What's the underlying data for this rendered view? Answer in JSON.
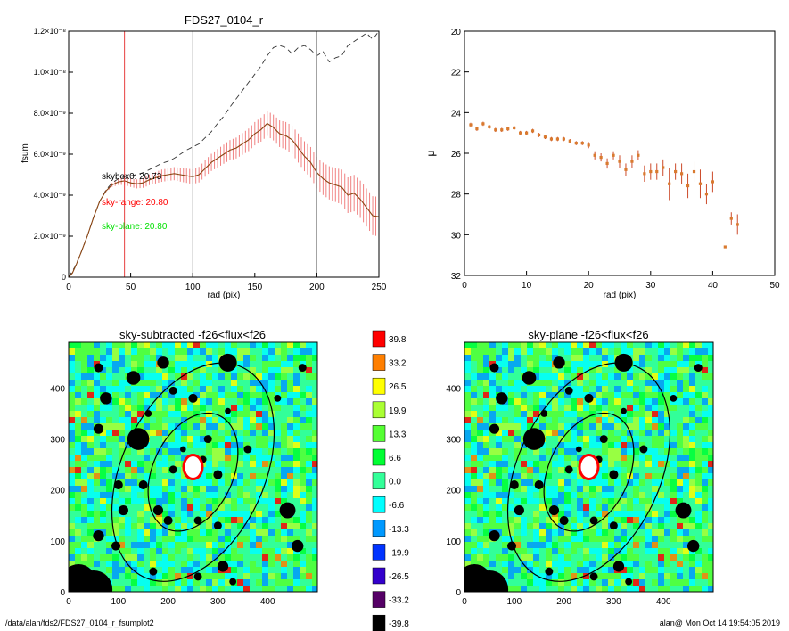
{
  "footer": {
    "path": "/data/alan/fds2/FDS27_0104_r_fsumplot2",
    "user_time": "alan@  Mon Oct 14 19:54:05 2019"
  },
  "colors": {
    "series_main": "#8b4513",
    "error_band": "#f08080",
    "outer_curve": "#333333",
    "sky_range_line": "#e63f3f",
    "ref_line": "#999999",
    "skybox_text": "#000000",
    "sky_range_text": "#ff0000",
    "sky_plane_text": "#00e000",
    "sb_point": "#d97a2f",
    "sb_err": "#cc4a2a"
  },
  "chart_data": [
    {
      "type": "line",
      "title": "FDS27_0104_r",
      "xlabel": "rad (pix)",
      "ylabel": "fsum",
      "xlim": [
        0,
        250
      ],
      "ylim": [
        0,
        1.2e-08
      ],
      "xticks": [
        "0",
        "50",
        "100",
        "150",
        "200",
        "250"
      ],
      "yticks": [
        "0",
        "2.0×10⁻⁹",
        "4.0×10⁻⁹",
        "6.0×10⁻⁹",
        "8.0×10⁻⁹",
        "1.0×10⁻⁸",
        "1.2×10⁻⁸"
      ],
      "ytick_values": [
        0,
        2e-09,
        4e-09,
        6e-09,
        8e-09,
        1e-08,
        1.2e-08
      ],
      "vertical_lines": [
        45,
        100,
        200
      ],
      "annotations": {
        "skybox": "skybox0: 20.73",
        "sky_range": "sky-range: 20.80",
        "sky_plane": "sky-plane: 20.80"
      },
      "series": [
        {
          "style": "solid-with-errorbars",
          "x": [
            0,
            3,
            6,
            10,
            15,
            20,
            25,
            30,
            35,
            40,
            45,
            50,
            55,
            60,
            65,
            70,
            75,
            80,
            85,
            90,
            95,
            100,
            105,
            110,
            115,
            120,
            125,
            130,
            135,
            140,
            145,
            150,
            155,
            160,
            165,
            170,
            175,
            180,
            185,
            190,
            195,
            200,
            205,
            210,
            215,
            220,
            225,
            230,
            235,
            240,
            245,
            250
          ],
          "y": [
            0,
            2e-10,
            6e-10,
            1.2e-09,
            2e-09,
            2.9e-09,
            3.7e-09,
            4.2e-09,
            4.5e-09,
            4.65e-09,
            4.7e-09,
            4.6e-09,
            4.55e-09,
            4.6e-09,
            4.75e-09,
            4.85e-09,
            4.95e-09,
            5e-09,
            5.05e-09,
            5e-09,
            4.95e-09,
            4.9e-09,
            5e-09,
            5.3e-09,
            5.6e-09,
            5.8e-09,
            6e-09,
            6.2e-09,
            6.3e-09,
            6.5e-09,
            6.7e-09,
            7e-09,
            7.2e-09,
            7.5e-09,
            7.3e-09,
            7e-09,
            6.9e-09,
            6.7e-09,
            6.3e-09,
            5.9e-09,
            5.6e-09,
            5.1e-09,
            4.8e-09,
            4.6e-09,
            4.5e-09,
            4.4e-09,
            4e-09,
            4.1e-09,
            3.8e-09,
            3.4e-09,
            3e-09,
            2.95e-09
          ],
          "err": [
            0,
            0,
            0,
            0,
            0,
            0,
            0,
            5e-11,
            1e-10,
            1.5e-10,
            2e-10,
            2e-10,
            2.2e-10,
            2.4e-10,
            2.6e-10,
            2.8e-10,
            3e-10,
            3e-10,
            3.2e-10,
            3.4e-10,
            3.5e-10,
            3.6e-10,
            3.8e-10,
            4e-10,
            4.2e-10,
            4.5e-10,
            4.7e-10,
            4.9e-10,
            5.1e-10,
            5.3e-10,
            5.5e-10,
            5.7e-10,
            5.9e-10,
            6.1e-10,
            6.3e-10,
            6.5e-10,
            6.7e-10,
            6.9e-10,
            7.1e-10,
            7.3e-10,
            7.5e-10,
            7.7e-10,
            7.9e-10,
            8.1e-10,
            8.3e-10,
            8.5e-10,
            8.7e-10,
            8.9e-10,
            9.1e-10,
            9.3e-10,
            9.5e-10,
            9.7e-10
          ]
        },
        {
          "style": "dashed",
          "x": [
            0,
            5,
            10,
            15,
            20,
            25,
            30,
            35,
            40,
            45,
            50,
            55,
            60,
            65,
            70,
            75,
            80,
            85,
            90,
            95,
            100,
            105,
            110,
            115,
            120,
            125,
            130,
            135,
            140,
            145,
            150,
            155,
            160,
            165,
            170,
            175,
            180,
            185,
            190,
            195,
            200,
            205,
            210,
            215,
            220,
            225,
            230,
            235,
            240,
            245,
            250
          ],
          "y": [
            0,
            5e-10,
            1.2e-09,
            2e-09,
            2.9e-09,
            3.7e-09,
            4.25e-09,
            4.6e-09,
            4.8e-09,
            4.9e-09,
            4.95e-09,
            5e-09,
            5.1e-09,
            5.25e-09,
            5.4e-09,
            5.55e-09,
            5.65e-09,
            5.8e-09,
            6e-09,
            6.2e-09,
            6.35e-09,
            6.5e-09,
            6.8e-09,
            7.1e-09,
            7.5e-09,
            7.85e-09,
            8.3e-09,
            8.7e-09,
            9.1e-09,
            9.5e-09,
            9.9e-09,
            1.03e-08,
            1.08e-08,
            1.12e-08,
            1.13e-08,
            1.12e-08,
            1.09e-08,
            1.12e-08,
            1.13e-08,
            1.11e-08,
            1.08e-08,
            1.1e-08,
            1.05e-08,
            1.07e-08,
            1.08e-08,
            1.13e-08,
            1.15e-08,
            1.17e-08,
            1.19e-08,
            1.16e-08,
            1.2e-08
          ]
        }
      ]
    },
    {
      "type": "scatter",
      "xlabel": "rad (pix)",
      "ylabel": "μ",
      "xlim": [
        0,
        50
      ],
      "ylim": [
        32,
        20
      ],
      "xticks": [
        "0",
        "10",
        "20",
        "30",
        "40",
        "50"
      ],
      "yticks": [
        "20",
        "22",
        "24",
        "26",
        "28",
        "30",
        "32"
      ],
      "x": [
        1,
        2,
        3,
        4,
        5,
        6,
        7,
        8,
        9,
        10,
        11,
        12,
        13,
        14,
        15,
        16,
        17,
        18,
        19,
        20,
        21,
        22,
        23,
        24,
        25,
        26,
        27,
        28,
        29,
        30,
        31,
        32,
        33,
        34,
        35,
        36,
        37,
        38,
        39,
        40,
        42,
        43,
        44
      ],
      "y": [
        24.6,
        24.8,
        24.55,
        24.7,
        24.85,
        24.85,
        24.8,
        24.75,
        25.0,
        25.0,
        24.9,
        25.1,
        25.2,
        25.3,
        25.3,
        25.3,
        25.4,
        25.5,
        25.5,
        25.6,
        26.1,
        26.2,
        26.5,
        26.1,
        26.4,
        26.8,
        26.4,
        26.1,
        27.0,
        26.9,
        26.9,
        26.7,
        27.5,
        26.9,
        27.0,
        27.6,
        26.9,
        27.5,
        28.0,
        27.4,
        30.6,
        29.2,
        29.5
      ],
      "err": [
        0.1,
        0.1,
        0.1,
        0.1,
        0.1,
        0.1,
        0.1,
        0.1,
        0.1,
        0.1,
        0.1,
        0.1,
        0.1,
        0.1,
        0.1,
        0.1,
        0.1,
        0.1,
        0.1,
        0.15,
        0.2,
        0.2,
        0.25,
        0.2,
        0.3,
        0.3,
        0.3,
        0.25,
        0.4,
        0.4,
        0.4,
        0.4,
        0.8,
        0.4,
        0.5,
        0.6,
        0.5,
        0.7,
        0.5,
        0.5,
        0,
        0.3,
        0.5
      ]
    },
    {
      "type": "heatmap",
      "title": "sky-subtracted -f26<flux<f26",
      "xlim": [
        0,
        500
      ],
      "ylim": [
        0,
        490
      ],
      "xticks": [
        "0",
        "100",
        "200",
        "300",
        "400"
      ],
      "yticks": [
        "0",
        "100",
        "200",
        "300",
        "400"
      ]
    },
    {
      "type": "heatmap",
      "title": "sky-plane -f26<flux<f26",
      "xlim": [
        0,
        500
      ],
      "ylim": [
        0,
        490
      ],
      "xticks": [
        "0",
        "100",
        "200",
        "300",
        "400"
      ],
      "yticks": [
        "0",
        "100",
        "200",
        "300",
        "400"
      ]
    }
  ],
  "colorbar": {
    "labels": [
      "39.8",
      "33.2",
      "26.5",
      "19.9",
      "13.3",
      "6.6",
      "0.0",
      "-6.6",
      "-13.3",
      "-19.9",
      "-26.5",
      "-33.2",
      "-39.8"
    ],
    "colors": [
      "#ff0000",
      "#ff7f00",
      "#ffff00",
      "#aaff33",
      "#55ff33",
      "#00ff33",
      "#33ff99",
      "#00ffff",
      "#0099ff",
      "#0033ff",
      "#3300cc",
      "#550066",
      "#000000"
    ]
  }
}
